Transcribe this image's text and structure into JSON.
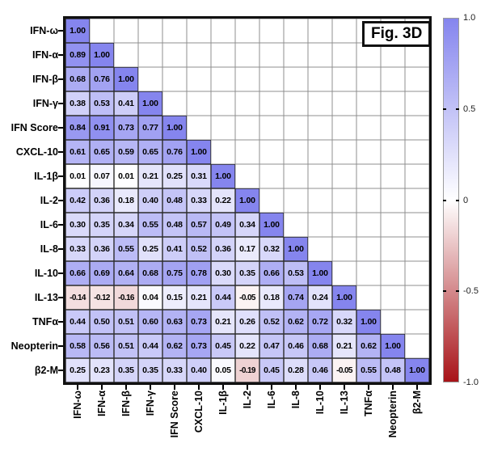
{
  "figure_label": "Fig. 3D",
  "chart_data": {
    "type": "heatmap",
    "subtype": "lower-triangle correlation matrix",
    "labels": [
      "IFN-ω",
      "IFN-α",
      "IFN-β",
      "IFN-γ",
      "IFN Score",
      "CXCL-10",
      "IL-1β",
      "IL-2",
      "IL-6",
      "IL-8",
      "IL-10",
      "IL-13",
      "TNFα",
      "Neopterin",
      "β2-M"
    ],
    "matrix_rows": [
      [
        1.0
      ],
      [
        0.89,
        1.0
      ],
      [
        0.68,
        0.76,
        1.0
      ],
      [
        0.38,
        0.53,
        0.41,
        1.0
      ],
      [
        0.84,
        0.91,
        0.73,
        0.77,
        1.0
      ],
      [
        0.61,
        0.65,
        0.59,
        0.65,
        0.76,
        1.0
      ],
      [
        0.01,
        0.07,
        0.01,
        0.21,
        0.25,
        0.31,
        1.0
      ],
      [
        0.42,
        0.36,
        0.18,
        0.4,
        0.48,
        0.33,
        0.22,
        1.0
      ],
      [
        0.3,
        0.35,
        0.34,
        0.55,
        0.48,
        0.57,
        0.49,
        0.34,
        1.0
      ],
      [
        0.33,
        0.36,
        0.55,
        0.25,
        0.41,
        0.52,
        0.36,
        0.17,
        0.32,
        1.0
      ],
      [
        0.66,
        0.69,
        0.64,
        0.68,
        0.75,
        0.78,
        0.3,
        0.35,
        0.66,
        0.53,
        1.0
      ],
      [
        -0.14,
        -0.12,
        -0.16,
        0.04,
        0.15,
        0.21,
        0.44,
        -0.05,
        0.18,
        0.74,
        0.24,
        1.0
      ],
      [
        0.44,
        0.5,
        0.51,
        0.6,
        0.63,
        0.73,
        0.21,
        0.26,
        0.52,
        0.62,
        0.72,
        0.32,
        1.0
      ],
      [
        0.58,
        0.56,
        0.51,
        0.44,
        0.62,
        0.73,
        0.45,
        0.22,
        0.47,
        0.46,
        0.68,
        0.21,
        0.62,
        1.0
      ],
      [
        0.25,
        0.23,
        0.35,
        0.35,
        0.33,
        0.4,
        0.05,
        -0.19,
        0.45,
        0.28,
        0.46,
        -0.05,
        0.55,
        0.48,
        1.0
      ]
    ],
    "value_decimals": 2,
    "grid": true,
    "legend_position": "right",
    "colorbar": {
      "min": -1.0,
      "max": 1.0,
      "tick_labels": [
        "1.0",
        "0.5",
        "0",
        "-0.5",
        "-1.0"
      ],
      "positive_color": "#8585ee",
      "zero_color": "#ffffff",
      "negative_color": "#a81318"
    }
  }
}
